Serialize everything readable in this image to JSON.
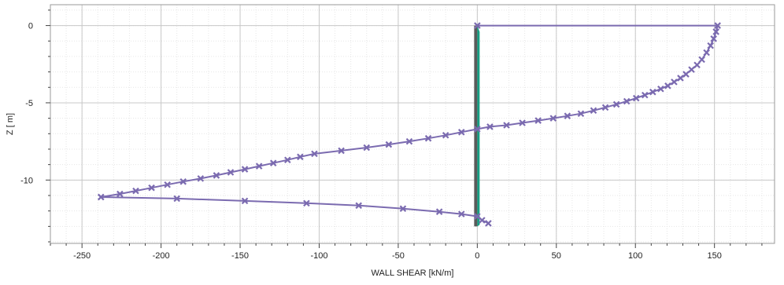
{
  "chart_data": {
    "type": "line",
    "title": "",
    "xlabel": "WALL SHEAR [kN/m]",
    "ylabel": "Z [ m]",
    "xlim": [
      -270,
      188
    ],
    "ylim": [
      -14.1,
      1.35
    ],
    "xticks": [
      -250,
      -200,
      -150,
      -100,
      -50,
      0,
      50,
      100,
      150
    ],
    "xtick_labels": [
      "-250",
      "-200",
      "-150",
      "-100",
      "-50",
      "0",
      "50",
      "100",
      "150"
    ],
    "yticks": [
      0,
      -5,
      -10
    ],
    "ytick_labels": [
      "0",
      "-5",
      "-10"
    ],
    "grid": true,
    "legend": "none",
    "colors": {
      "shear": "#7b6bb0",
      "marker": "#7b6bb0",
      "wall": "#5a5a5a",
      "wall_fill": "#169e83",
      "grid_major": "#c8c8c8",
      "grid_minor": "#e6e6e6",
      "axis": "#444444"
    },
    "series": [
      {
        "line": true,
        "marker": "x",
        "x": [
          0,
          152,
          151,
          149.5,
          147.5,
          145,
          142,
          139,
          135.5,
          132,
          128.5,
          124.5,
          120.5,
          116,
          111,
          106,
          100.5,
          94.5,
          88,
          81,
          73.5,
          65.5,
          57,
          48,
          38.5,
          28.5,
          18.5,
          8,
          0,
          -10,
          -20,
          -31,
          -43,
          -56,
          -70,
          -86,
          -103,
          -112,
          -120,
          -129,
          -138,
          -147,
          -156,
          -165,
          -175,
          -186,
          -196,
          -206,
          -216,
          -226,
          -238,
          -238,
          -190,
          -147,
          -108,
          -75,
          -47,
          -24,
          -10,
          0,
          3,
          7
        ],
        "y": [
          0,
          0,
          -0.4,
          -0.85,
          -1.3,
          -1.75,
          -2.2,
          -2.55,
          -2.85,
          -3.15,
          -3.4,
          -3.65,
          -3.9,
          -4.1,
          -4.3,
          -4.5,
          -4.7,
          -4.9,
          -5.1,
          -5.3,
          -5.5,
          -5.7,
          -5.85,
          -6.0,
          -6.15,
          -6.3,
          -6.45,
          -6.55,
          -6.7,
          -6.9,
          -7.1,
          -7.3,
          -7.5,
          -7.7,
          -7.9,
          -8.1,
          -8.3,
          -8.5,
          -8.7,
          -8.9,
          -9.1,
          -9.3,
          -9.5,
          -9.7,
          -9.9,
          -10.1,
          -10.3,
          -10.5,
          -10.7,
          -10.9,
          -11.1,
          -11.1,
          -11.2,
          -11.35,
          -11.5,
          -11.65,
          -11.85,
          -12.05,
          -12.2,
          -12.35,
          -12.6,
          -12.8
        ]
      }
    ],
    "wall": {
      "x": [
        0,
        0
      ],
      "y": [
        0,
        -13.0
      ]
    }
  }
}
